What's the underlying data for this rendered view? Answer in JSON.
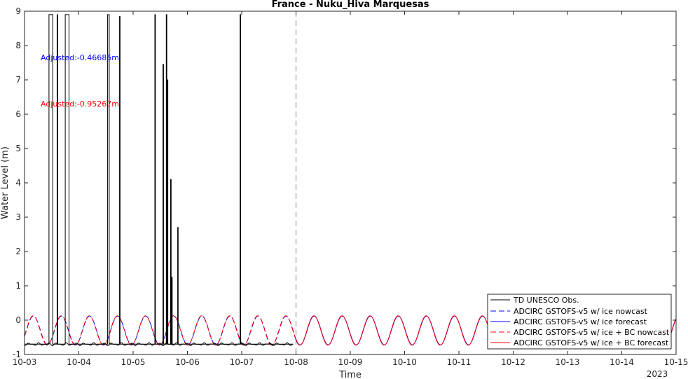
{
  "chart_data": {
    "type": "line",
    "title": "France - Nuku_Hiva Marquesas",
    "xlabel": "Time",
    "ylabel": "Water Level (m)",
    "xlim": [
      "10-03",
      "10-15"
    ],
    "ylim": [
      -1,
      9
    ],
    "x_ticks": [
      "10-03",
      "10-04",
      "10-05",
      "10-06",
      "10-07",
      "10-08",
      "10-09",
      "10-10",
      "10-11",
      "10-12",
      "10-13",
      "10-14",
      "10-15"
    ],
    "y_ticks": [
      -1,
      0,
      1,
      2,
      3,
      4,
      5,
      6,
      7,
      8,
      9
    ],
    "year_label": "2023",
    "grid": false,
    "nowcast_forecast_boundary": "10-08",
    "legend_position": "bottom-right",
    "annotations": [
      {
        "text": "Adjusted:-0.46685m",
        "color": "#0000ff",
        "y": 7.65
      },
      {
        "text": "Adjusted:-0.95267m",
        "color": "#ff0000",
        "y": 6.3
      }
    ],
    "series": [
      {
        "name": "TD UNESCO Obs.",
        "color": "#000000",
        "style": "solid",
        "baseline": -0.7,
        "spikes": [
          {
            "start": 3.45,
            "end": 3.52,
            "value": 8.9
          },
          {
            "start": 3.6,
            "end": 3.61,
            "value": 8.9
          },
          {
            "start": 3.75,
            "end": 3.82,
            "value": 8.9
          },
          {
            "start": 4.53,
            "end": 4.56,
            "value": 8.9
          },
          {
            "start": 4.75,
            "end": 4.76,
            "value": 8.85
          },
          {
            "start": 5.4,
            "end": 5.41,
            "value": 8.9
          },
          {
            "start": 5.55,
            "end": 5.56,
            "value": 7.45
          },
          {
            "start": 5.61,
            "end": 5.62,
            "value": 8.9
          },
          {
            "start": 5.63,
            "end": 5.64,
            "value": 7.0
          },
          {
            "start": 5.69,
            "end": 5.7,
            "value": 4.1
          },
          {
            "start": 5.71,
            "end": 5.72,
            "value": 1.25
          },
          {
            "start": 5.82,
            "end": 5.83,
            "value": 2.7
          },
          {
            "start": 6.97,
            "end": 6.98,
            "value": 8.9
          }
        ]
      },
      {
        "name": "ADCIRC GSTOFS-v5 w/ ice nowcast",
        "color": "#0000ff",
        "style": "dashed"
      },
      {
        "name": "ADCIRC GSTOFS-v5 w/ ice forecast",
        "color": "#0000ff",
        "style": "solid"
      },
      {
        "name": "ADCIRC GSTOFS-v5 w/ ice + BC nowcast",
        "color": "#ff0000",
        "style": "dashed"
      },
      {
        "name": "ADCIRC GSTOFS-v5 w/ ice + BC forecast",
        "color": "#ff0000",
        "style": "solid"
      }
    ],
    "model_tide": {
      "mean": -0.3,
      "amplitude": 0.42,
      "period_days": 0.517,
      "peak_day": 3.16
    }
  }
}
